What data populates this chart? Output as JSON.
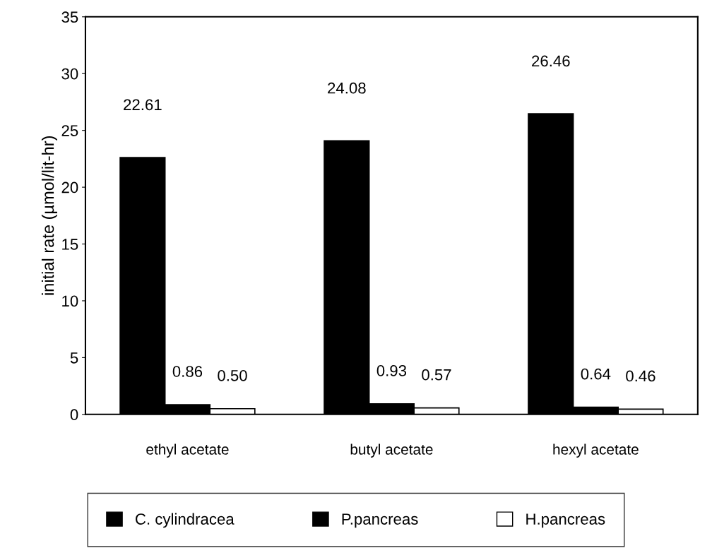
{
  "chart_data": {
    "type": "bar",
    "ylabel": "initial rate (µmol/lit-hr)",
    "categories": [
      "ethyl acetate",
      "butyl acetate",
      "hexyl acetate"
    ],
    "series": [
      {
        "name": "C. cylindracea",
        "color": "#000000",
        "values": [
          22.61,
          24.08,
          26.46
        ]
      },
      {
        "name": "P.pancreas",
        "color": "#000000",
        "values": [
          0.86,
          0.93,
          0.64
        ]
      },
      {
        "name": "H.pancreas",
        "color": "#ffffff",
        "values": [
          0.5,
          0.57,
          0.46
        ]
      }
    ],
    "value_labels": [
      [
        "22.61",
        "24.08",
        "26.46"
      ],
      [
        "0.86",
        "0.93",
        "0.64"
      ],
      [
        "0.50",
        "0.57",
        "0.46"
      ]
    ],
    "ylim": [
      0,
      35
    ],
    "yticks": [
      0,
      5,
      10,
      15,
      20,
      25,
      30,
      35
    ],
    "grid": false,
    "legend": "bottom"
  }
}
